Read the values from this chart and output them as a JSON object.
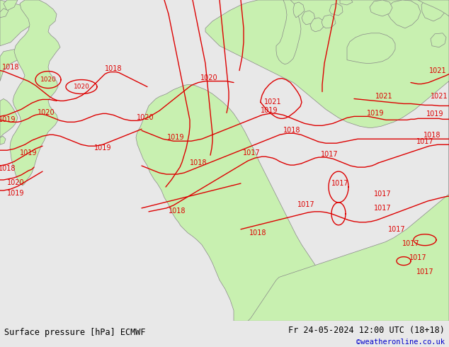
{
  "title_left": "Surface pressure [hPa] ECMWF",
  "title_right": "Fr 24-05-2024 12:00 UTC (18+18)",
  "credit": "©weatheronline.co.uk",
  "bg_color": "#e8e8e8",
  "land_green_color": "#c8f0b0",
  "border_color": "#888888",
  "isobar_color": "#dd0000",
  "bottom_bar_color": "#ffffff",
  "bottom_text_color": "#000000",
  "credit_color": "#0000cc",
  "figsize": [
    6.34,
    4.9
  ],
  "dpi": 100
}
